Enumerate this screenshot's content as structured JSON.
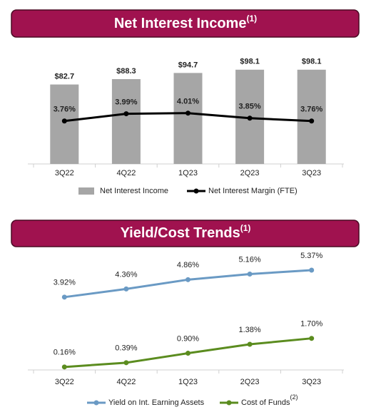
{
  "chart_data": [
    {
      "type": "bar",
      "title": "Net Interest Income",
      "title_superscript": "(1)",
      "categories": [
        "3Q22",
        "4Q22",
        "1Q23",
        "2Q23",
        "3Q23"
      ],
      "series": [
        {
          "name": "Net Interest Income",
          "type": "bar",
          "color": "#a6a6a6",
          "values": [
            82.7,
            88.3,
            94.7,
            98.1,
            98.1
          ],
          "value_labels": [
            "$82.7",
            "$88.3",
            "$94.7",
            "$98.1",
            "$98.1"
          ]
        },
        {
          "name": "Net Interest Margin (FTE)",
          "type": "line",
          "axis": "y2",
          "color": "#000000",
          "values": [
            3.76,
            3.99,
            4.01,
            3.85,
            3.76
          ],
          "value_labels": [
            "3.76%",
            "3.99%",
            "4.01%",
            "3.85%",
            "3.76%"
          ]
        }
      ],
      "ylim": [
        0,
        115
      ],
      "y2lim": [
        2.4,
        5.9
      ]
    },
    {
      "type": "line",
      "title": "Yield/Cost Trends",
      "title_superscript": "(1)",
      "categories": [
        "3Q22",
        "4Q22",
        "1Q23",
        "2Q23",
        "3Q23"
      ],
      "series": [
        {
          "name": "Yield on Int. Earning Assets",
          "type": "line",
          "color": "#6a9ac4",
          "values": [
            3.92,
            4.36,
            4.86,
            5.16,
            5.37
          ],
          "value_labels": [
            "3.92%",
            "4.36%",
            "4.86%",
            "5.16%",
            "5.37%"
          ]
        },
        {
          "name": "Cost of Funds",
          "name_superscript": "(2)",
          "type": "line",
          "color": "#5b8c1f",
          "values": [
            0.16,
            0.39,
            0.9,
            1.38,
            1.7
          ],
          "value_labels": [
            "0.16%",
            "0.39%",
            "0.90%",
            "1.38%",
            "1.70%"
          ]
        }
      ],
      "ylim": [
        0,
        6.1
      ]
    }
  ]
}
